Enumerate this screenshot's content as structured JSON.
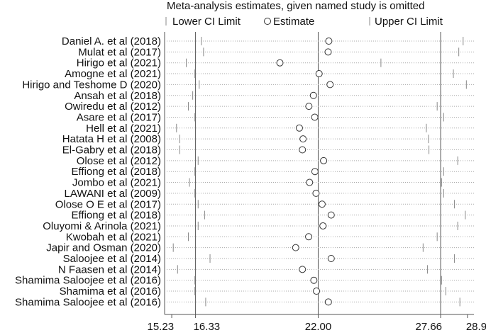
{
  "chart_data": {
    "type": "scatter",
    "title": "Meta-analysis estimates, given named study is omitted",
    "legend": {
      "placement": "top",
      "items": [
        {
          "marker": "line",
          "label": "Lower CI Limit"
        },
        {
          "marker": "circle",
          "label": "Estimate"
        },
        {
          "marker": "line",
          "label": "Upper CI Limit"
        }
      ]
    },
    "x_ticks": [
      {
        "value": 15.23,
        "label": "15.23"
      },
      {
        "value": 16.33,
        "label": "16.33"
      },
      {
        "value": 22.0,
        "label": "22.00"
      },
      {
        "value": 27.66,
        "label": "27.66"
      },
      {
        "value": 28.9,
        "label": "28.90"
      }
    ],
    "xlim": [
      14.9,
      29.2
    ],
    "reference_lines": [
      16.33,
      22.0,
      27.66
    ],
    "grid": "dotted horizontal per study",
    "studies": [
      {
        "label": "Daniel A. et al (2018)",
        "lower": 16.6,
        "estimate": 22.49,
        "upper": 28.7
      },
      {
        "label": "Mulat et al (2017)",
        "lower": 16.7,
        "estimate": 22.46,
        "upper": 28.5
      },
      {
        "label": "Hirigo et al (2021)",
        "lower": 15.9,
        "estimate": 20.23,
        "upper": 24.9
      },
      {
        "label": "Amogne et al (2021)",
        "lower": 16.3,
        "estimate": 22.04,
        "upper": 28.25
      },
      {
        "label": "Hirigo and Teshome D (2020)",
        "lower": 16.5,
        "estimate": 22.55,
        "upper": 28.85
      },
      {
        "label": "Ansah et al (2018)",
        "lower": 16.2,
        "estimate": 21.78,
        "upper": 27.67
      },
      {
        "label": "Owiredu et al (2012)",
        "lower": 16.0,
        "estimate": 21.57,
        "upper": 27.5
      },
      {
        "label": "Asare et al (2017)",
        "lower": 16.3,
        "estimate": 21.84,
        "upper": 27.8
      },
      {
        "label": "Hell et al (2021)",
        "lower": 15.45,
        "estimate": 21.13,
        "upper": 27.0
      },
      {
        "label": "Hatata H et al (2008)",
        "lower": 15.6,
        "estimate": 21.3,
        "upper": 27.1
      },
      {
        "label": "El-Gabry et al (2018)",
        "lower": 15.6,
        "estimate": 21.27,
        "upper": 27.12
      },
      {
        "label": "Olose et al (2012)",
        "lower": 16.45,
        "estimate": 22.25,
        "upper": 28.45
      },
      {
        "label": "Effiong et al (2018)",
        "lower": 16.3,
        "estimate": 21.85,
        "upper": 27.8
      },
      {
        "label": "Jombo et al (2021)",
        "lower": 16.05,
        "estimate": 21.6,
        "upper": 27.7
      },
      {
        "label": "LAWANI et al (2009)",
        "lower": 16.3,
        "estimate": 21.9,
        "upper": 27.8
      },
      {
        "label": "Olose O E et al (2017)",
        "lower": 16.45,
        "estimate": 22.18,
        "upper": 28.3
      },
      {
        "label": "Effiong et al (2018)",
        "lower": 16.75,
        "estimate": 22.6,
        "upper": 28.8
      },
      {
        "label": "Oluyomi & Arinola  (2021)",
        "lower": 16.45,
        "estimate": 22.22,
        "upper": 28.45
      },
      {
        "label": "Kwobah et al (2021)",
        "lower": 16.0,
        "estimate": 21.56,
        "upper": 27.5
      },
      {
        "label": "Japir and Osman (2020)",
        "lower": 15.3,
        "estimate": 20.96,
        "upper": 26.85
      },
      {
        "label": "Saloojee et al (2014)",
        "lower": 17.0,
        "estimate": 22.6,
        "upper": 28.3
      },
      {
        "label": "N Faasen et al (2014)",
        "lower": 15.5,
        "estimate": 21.27,
        "upper": 27.05
      },
      {
        "label": "Shamima Saloojee et al (2016)",
        "lower": 16.3,
        "estimate": 21.8,
        "upper": 27.7
      },
      {
        "label": "Shamima et al (2016)",
        "lower": 16.3,
        "estimate": 21.92,
        "upper": 27.9
      },
      {
        "label": "Shamima Saloojee et al (2016)",
        "lower": 16.8,
        "estimate": 22.47,
        "upper": 28.55
      }
    ]
  }
}
